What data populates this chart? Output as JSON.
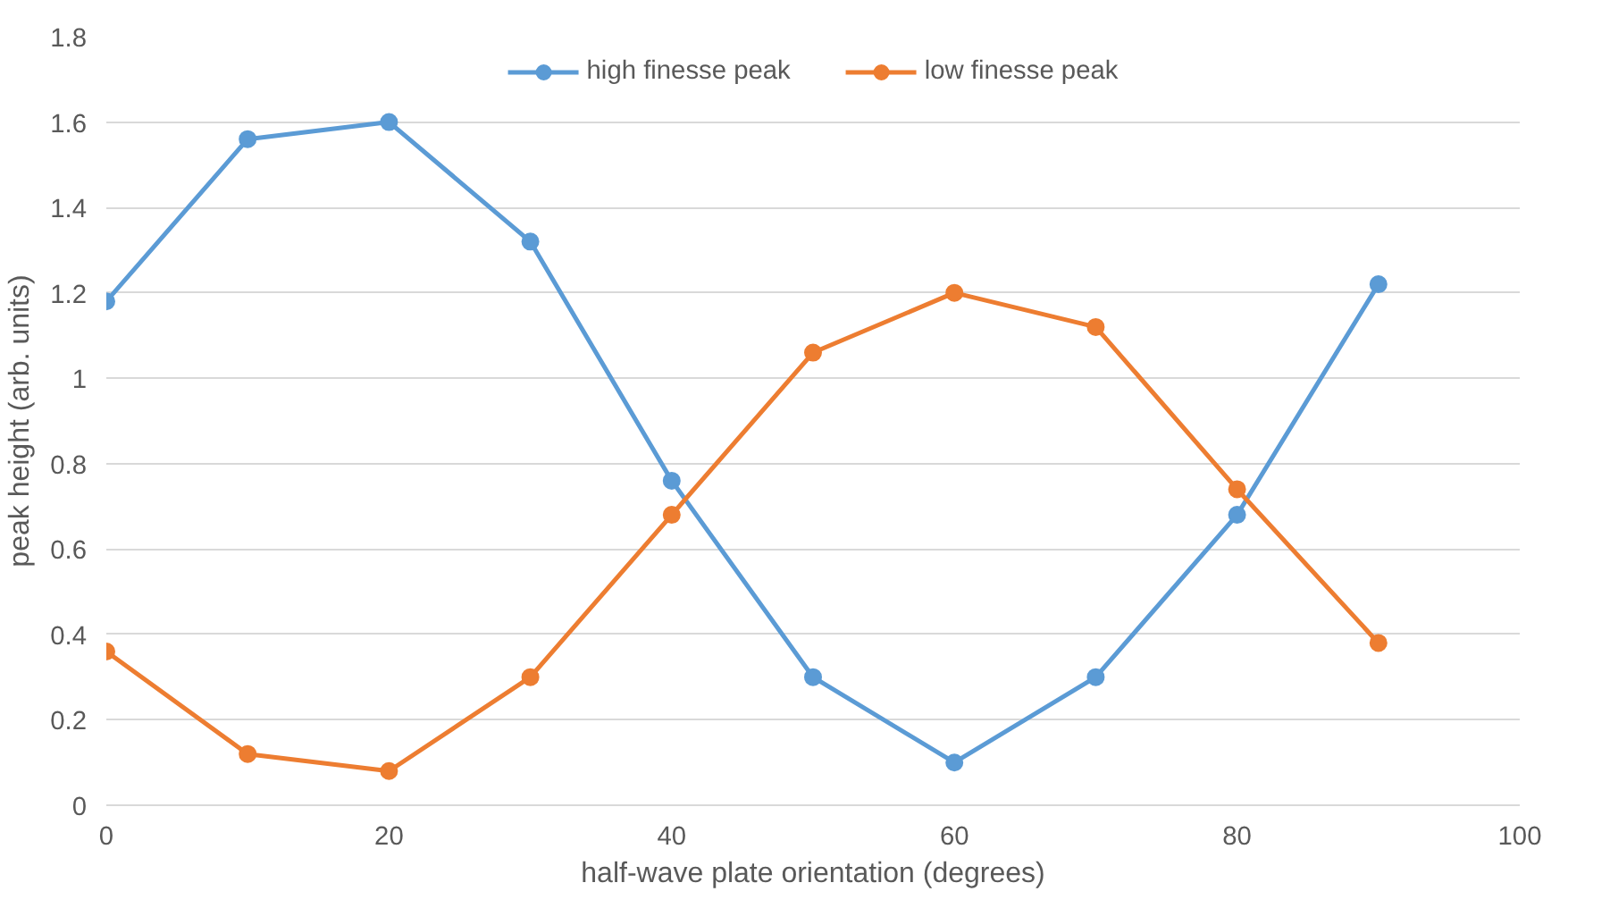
{
  "chart_data": {
    "type": "line",
    "xlabel": "half-wave plate orientation (degrees)",
    "ylabel": "peak height (arb. units)",
    "x": [
      0,
      10,
      20,
      30,
      40,
      50,
      60,
      70,
      80,
      90
    ],
    "series": [
      {
        "name": "high finesse peak",
        "color": "#5b9bd5",
        "values": [
          1.18,
          1.56,
          1.6,
          1.32,
          0.76,
          0.3,
          0.1,
          0.3,
          0.68,
          1.22
        ]
      },
      {
        "name": "low finesse peak",
        "color": "#ed7d31",
        "values": [
          0.36,
          0.12,
          0.08,
          0.3,
          0.68,
          1.06,
          1.2,
          1.12,
          0.74,
          0.38
        ]
      }
    ],
    "xlim": [
      0,
      100
    ],
    "xticks": [
      0,
      20,
      40,
      60,
      80,
      100
    ],
    "ylim": [
      0,
      1.8
    ],
    "yticks": [
      0,
      {
        "value": 0.2,
        "label": "0.2"
      },
      {
        "value": 0.4,
        "label": "0.4"
      },
      {
        "value": 0.6,
        "label": "0.6"
      },
      {
        "value": 0.8,
        "label": "0.8"
      },
      1,
      {
        "value": 1.2,
        "label": "1.2"
      },
      {
        "value": 1.4,
        "label": "1.4"
      },
      {
        "value": 1.6,
        "label": "1.6"
      },
      {
        "value": 1.8,
        "label": "1.8"
      }
    ],
    "grid": "y",
    "legend": "top",
    "marker": "circle",
    "line_style": "solid"
  }
}
